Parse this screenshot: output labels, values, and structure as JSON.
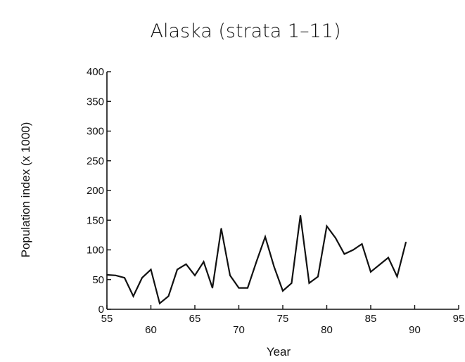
{
  "chart_data": {
    "type": "line",
    "title": "Alaska (strata 1–11)",
    "xlabel": "Year",
    "ylabel": "Population index (x 1000)",
    "xlim": [
      55,
      95
    ],
    "ylim": [
      0,
      400
    ],
    "x_ticks": [
      "55",
      "60",
      "65",
      "70",
      "75",
      "80",
      "85",
      "90",
      "95"
    ],
    "y_ticks": [
      "0",
      "50",
      "100",
      "150",
      "200",
      "250",
      "300",
      "350",
      "400"
    ],
    "grid": false,
    "series": [
      {
        "x": [
          55,
          56,
          57,
          58,
          59,
          60,
          61,
          62,
          63,
          64,
          65,
          66,
          67,
          68,
          69,
          70,
          71,
          72,
          73,
          74,
          75,
          76,
          77,
          78,
          79,
          80,
          81,
          82,
          83,
          84,
          85,
          86,
          87,
          88,
          89
        ],
        "values": [
          58,
          57,
          53,
          22,
          53,
          67,
          10,
          22,
          67,
          76,
          57,
          80,
          36,
          136,
          57,
          36,
          36,
          80,
          122,
          72,
          31,
          44,
          158,
          44,
          55,
          140,
          120,
          93,
          100,
          110,
          63,
          75,
          87,
          55,
          113
        ]
      }
    ]
  }
}
